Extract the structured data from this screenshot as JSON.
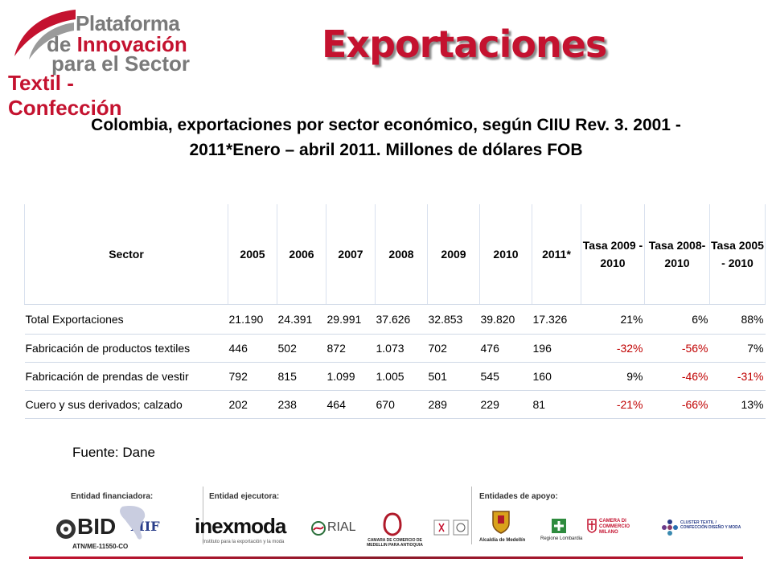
{
  "logo": {
    "line1": "Plataforma",
    "line2_prefix": "de ",
    "line2_accent": "Innovación",
    "line3": "para el Sector",
    "line4": "Textil - Confección"
  },
  "title": "Exportaciones",
  "subtitle_line1": "Colombia, exportaciones por sector económico, según CIIU Rev. 3. 2001 -",
  "subtitle_line2": "2011*Enero – abril  2011. Millones de dólares FOB",
  "table": {
    "headers": [
      "Sector",
      "2005",
      "2006",
      "2007",
      "2008",
      "2009",
      "2010",
      "2011*",
      "Tasa 2009 - 2010",
      "Tasa 2008- 2010",
      "Tasa 2005 - 2010"
    ],
    "rows": [
      [
        "Total Exportaciones",
        "21.190",
        "24.391",
        "29.991",
        "37.626",
        "32.853",
        "39.820",
        "17.326",
        "21%",
        "6%",
        "88%"
      ],
      [
        "Fabricación de productos textiles",
        "446",
        "502",
        "872",
        "1.073",
        "702",
        "476",
        "196",
        "-32%",
        "-56%",
        "7%"
      ],
      [
        "Fabricación de prendas de vestir",
        "792",
        "815",
        "1.099",
        "1.005",
        "501",
        "545",
        "160",
        "9%",
        "-46%",
        "-31%"
      ],
      [
        "Cuero y sus derivados; calzado",
        "202",
        "238",
        "464",
        "670",
        "289",
        "229",
        "81",
        "-21%",
        "-66%",
        "13%"
      ]
    ]
  },
  "source": "Fuente: Dane",
  "footer": {
    "financiadora_label": "Entidad financiadora:",
    "ejecutora_label": "Entidad ejecutora:",
    "apoyo_label": "Entidades de apoyo:",
    "bid": "BID",
    "bid_code": "ATN/ME-11550-CO",
    "mif": "MIF",
    "inexmoda": "inexmoda",
    "inexmoda_tag": "Instituto para la exportación y la moda",
    "rial": "RIAL",
    "camara": "CAMARA DE COMERCIO DE MEDELLIN PARA ANTIOQUIA",
    "alcaldia": "Alcaldía de Medellín",
    "lombardia": "Regione Lombardia",
    "milano": "CAMERA DI COMMERCIO MILANO",
    "cluster": "CLUSTER TEXTIL / CONFECCIÓN DISEÑO Y MODA"
  },
  "colors": {
    "accent": "#c4122f",
    "logo_gray": "#7a7a7a",
    "negative": "#c00000"
  }
}
